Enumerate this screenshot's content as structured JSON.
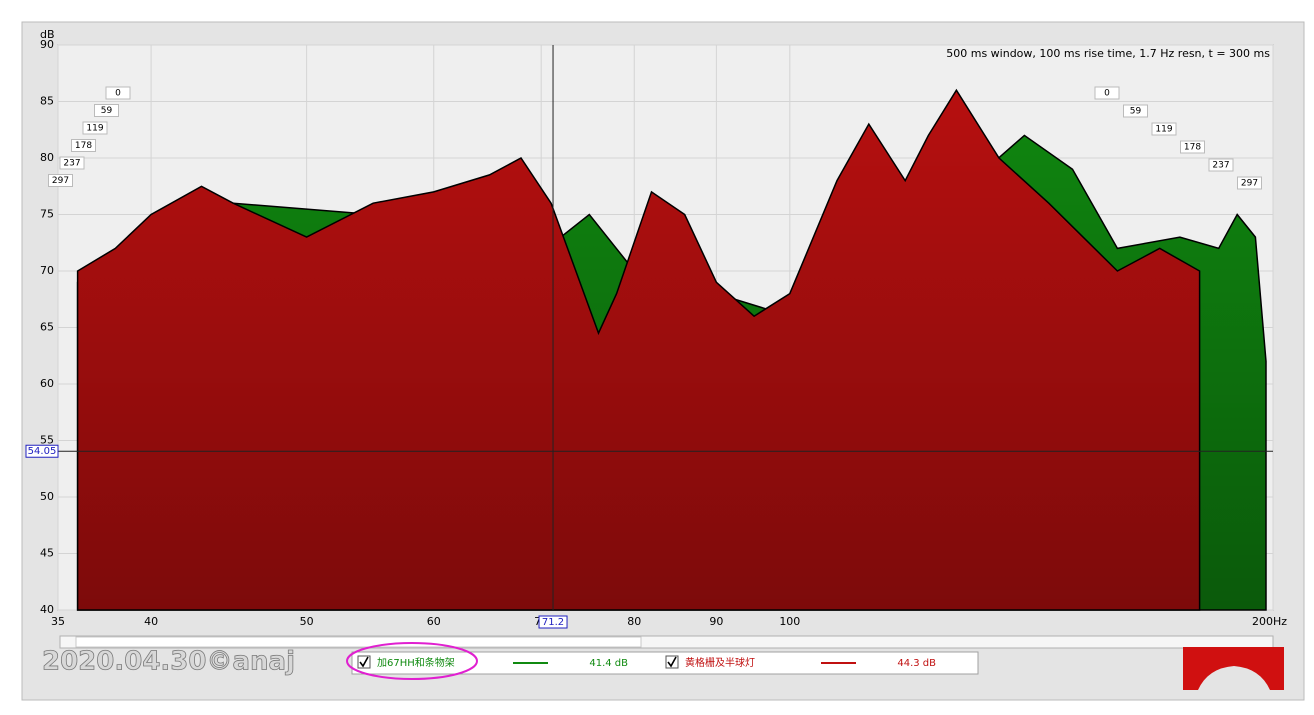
{
  "chart_data": {
    "type": "waterfall",
    "title": "500 ms window, 100 ms rise time,  1.7 Hz resn, t = 300 ms",
    "y_label": "dB",
    "watermark": "2020.04.30©anaj",
    "log_x": true,
    "xlim": [
      35,
      200
    ],
    "ylim": [
      40,
      90
    ],
    "xticks": [
      35,
      40,
      50,
      60,
      70,
      80,
      90,
      100,
      {
        "value": 200,
        "label": "200Hz"
      }
    ],
    "yticks": [
      40,
      45,
      50,
      55,
      60,
      65,
      70,
      75,
      80,
      85,
      90
    ],
    "grid": true,
    "time_slices": [
      0,
      59,
      119,
      178,
      237,
      297
    ],
    "cursor": {
      "x": 71.2,
      "y": 54.05
    },
    "series": [
      {
        "name": "加67HH和条物架",
        "color": "#108a10",
        "level": 41.4,
        "level_label": "41.4 dB",
        "x": [
          36,
          40,
          45,
          55,
          65,
          72,
          75,
          80,
          90,
          100,
          110,
          120,
          130,
          140,
          150,
          160,
          175,
          185,
          190,
          195,
          198
        ],
        "values": [
          69,
          74,
          76,
          75,
          77,
          73,
          75,
          70,
          68,
          66,
          80,
          72,
          78,
          82,
          79,
          72,
          73,
          72,
          75,
          73,
          62
        ]
      },
      {
        "name": "黄格栅及半球灯",
        "color": "#c01010",
        "level": 44.3,
        "level_label": "44.3 dB",
        "x": [
          36,
          38,
          40,
          43,
          45,
          50,
          55,
          60,
          65,
          68,
          71,
          76,
          78,
          82,
          86,
          90,
          95,
          100,
          107,
          112,
          118,
          122,
          127,
          135,
          145,
          160,
          170,
          180
        ],
        "values": [
          70,
          72,
          75,
          77.5,
          76,
          73,
          76,
          77,
          78.5,
          80,
          76,
          64.5,
          68,
          77,
          75,
          69,
          66,
          68,
          78,
          83,
          78,
          82,
          86,
          80,
          76,
          70,
          72,
          70
        ]
      }
    ]
  }
}
